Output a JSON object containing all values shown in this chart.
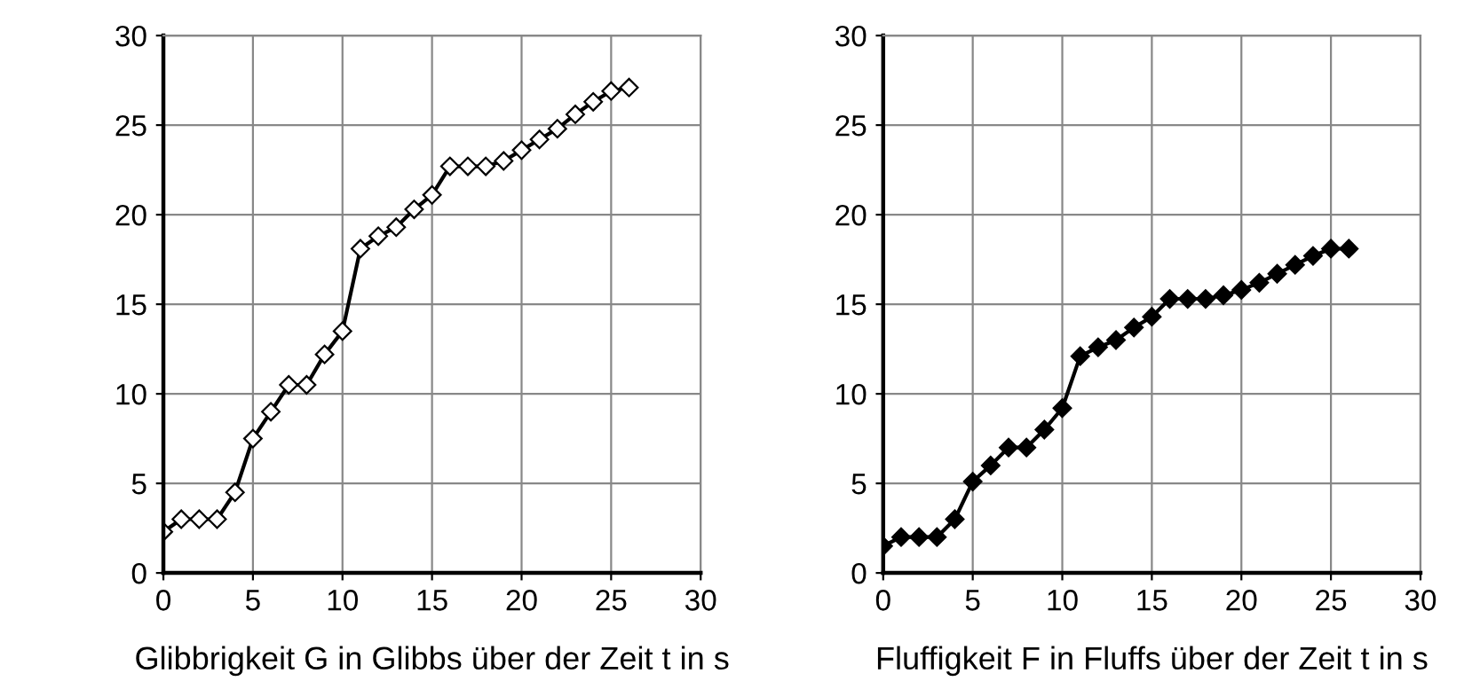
{
  "chart_data": [
    {
      "type": "line",
      "xlabel": "Glibbrigkeit G in Glibbs über der Zeit t in s",
      "x": [
        0,
        1,
        2,
        3,
        4,
        5,
        6,
        7,
        8,
        9,
        10,
        11,
        12,
        13,
        14,
        15,
        16,
        17,
        18,
        19,
        20,
        21,
        22,
        23,
        24,
        25,
        26
      ],
      "series": [
        {
          "color": "#ffffff",
          "values": [
            2.3,
            3.0,
            3.0,
            3.0,
            4.5,
            7.5,
            9.0,
            10.5,
            10.5,
            12.2,
            13.5,
            18.1,
            18.8,
            19.3,
            20.3,
            21.1,
            22.7,
            22.7,
            22.7,
            23.0,
            23.6,
            24.2,
            24.8,
            25.6,
            26.3,
            26.9,
            27.1
          ]
        }
      ],
      "xlim": [
        0,
        30
      ],
      "ylim": [
        0,
        30
      ],
      "xticks": [
        0,
        5,
        10,
        15,
        20,
        25,
        30
      ],
      "yticks": [
        0,
        5,
        10,
        15,
        20,
        25,
        30
      ],
      "grid": true,
      "marker": "diamond",
      "line_style": "solid"
    },
    {
      "type": "line",
      "xlabel": "Fluffigkeit F in Fluffs über der Zeit t in s",
      "x": [
        0,
        1,
        2,
        3,
        4,
        5,
        6,
        7,
        8,
        9,
        10,
        11,
        12,
        13,
        14,
        15,
        16,
        17,
        18,
        19,
        20,
        21,
        22,
        23,
        24,
        25,
        26
      ],
      "series": [
        {
          "color": "#000000",
          "values": [
            1.5,
            2.0,
            2.0,
            2.0,
            3.0,
            5.1,
            6.0,
            7.0,
            7.0,
            8.0,
            9.2,
            12.1,
            12.6,
            13.0,
            13.7,
            14.3,
            15.3,
            15.3,
            15.3,
            15.5,
            15.8,
            16.2,
            16.7,
            17.2,
            17.7,
            18.1,
            18.1
          ]
        }
      ],
      "xlim": [
        0,
        30
      ],
      "ylim": [
        0,
        30
      ],
      "xticks": [
        0,
        5,
        10,
        15,
        20,
        25,
        30
      ],
      "yticks": [
        0,
        5,
        10,
        15,
        20,
        25,
        30
      ],
      "grid": true,
      "marker": "diamond",
      "line_style": "solid"
    }
  ]
}
